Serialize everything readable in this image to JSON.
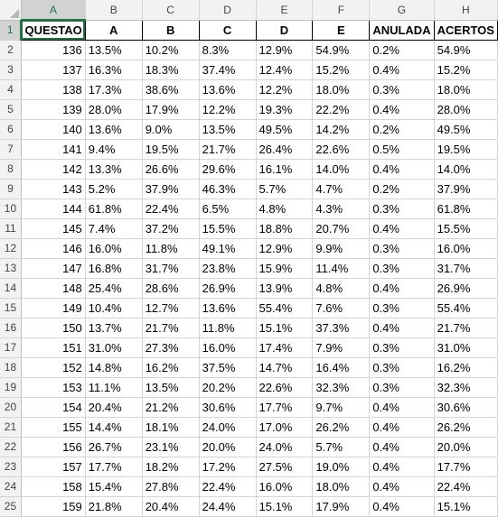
{
  "sheet": {
    "column_headers": [
      "A",
      "B",
      "C",
      "D",
      "E",
      "F",
      "G",
      "H"
    ],
    "selected_column": "A",
    "selected_row": 1,
    "header_row": [
      "QUESTAO",
      "A",
      "B",
      "C",
      "D",
      "E",
      "ANULADA",
      "ACERTOS"
    ],
    "rows": [
      {
        "n": "2",
        "cells": [
          "136",
          "13.5%",
          "10.2%",
          "8.3%",
          "12.9%",
          "54.9%",
          "0.2%",
          "54.9%"
        ]
      },
      {
        "n": "3",
        "cells": [
          "137",
          "16.3%",
          "18.3%",
          "37.4%",
          "12.4%",
          "15.2%",
          "0.4%",
          "15.2%"
        ]
      },
      {
        "n": "4",
        "cells": [
          "138",
          "17.3%",
          "38.6%",
          "13.6%",
          "12.2%",
          "18.0%",
          "0.3%",
          "18.0%"
        ]
      },
      {
        "n": "5",
        "cells": [
          "139",
          "28.0%",
          "17.9%",
          "12.2%",
          "19.3%",
          "22.2%",
          "0.4%",
          "28.0%"
        ]
      },
      {
        "n": "6",
        "cells": [
          "140",
          "13.6%",
          "9.0%",
          "13.5%",
          "49.5%",
          "14.2%",
          "0.2%",
          "49.5%"
        ]
      },
      {
        "n": "7",
        "cells": [
          "141",
          "9.4%",
          "19.5%",
          "21.7%",
          "26.4%",
          "22.6%",
          "0.5%",
          "19.5%"
        ]
      },
      {
        "n": "8",
        "cells": [
          "142",
          "13.3%",
          "26.6%",
          "29.6%",
          "16.1%",
          "14.0%",
          "0.4%",
          "14.0%"
        ]
      },
      {
        "n": "9",
        "cells": [
          "143",
          "5.2%",
          "37.9%",
          "46.3%",
          "5.7%",
          "4.7%",
          "0.2%",
          "37.9%"
        ]
      },
      {
        "n": "10",
        "cells": [
          "144",
          "61.8%",
          "22.4%",
          "6.5%",
          "4.8%",
          "4.3%",
          "0.3%",
          "61.8%"
        ]
      },
      {
        "n": "11",
        "cells": [
          "145",
          "7.4%",
          "37.2%",
          "15.5%",
          "18.8%",
          "20.7%",
          "0.4%",
          "15.5%"
        ]
      },
      {
        "n": "12",
        "cells": [
          "146",
          "16.0%",
          "11.8%",
          "49.1%",
          "12.9%",
          "9.9%",
          "0.3%",
          "16.0%"
        ]
      },
      {
        "n": "13",
        "cells": [
          "147",
          "16.8%",
          "31.7%",
          "23.8%",
          "15.9%",
          "11.4%",
          "0.3%",
          "31.7%"
        ]
      },
      {
        "n": "14",
        "cells": [
          "148",
          "25.4%",
          "28.6%",
          "26.9%",
          "13.9%",
          "4.8%",
          "0.4%",
          "26.9%"
        ]
      },
      {
        "n": "15",
        "cells": [
          "149",
          "10.4%",
          "12.7%",
          "13.6%",
          "55.4%",
          "7.6%",
          "0.3%",
          "55.4%"
        ]
      },
      {
        "n": "16",
        "cells": [
          "150",
          "13.7%",
          "21.7%",
          "11.8%",
          "15.1%",
          "37.3%",
          "0.4%",
          "21.7%"
        ]
      },
      {
        "n": "17",
        "cells": [
          "151",
          "31.0%",
          "27.3%",
          "16.0%",
          "17.4%",
          "7.9%",
          "0.3%",
          "31.0%"
        ]
      },
      {
        "n": "18",
        "cells": [
          "152",
          "14.8%",
          "16.2%",
          "37.5%",
          "14.7%",
          "16.4%",
          "0.3%",
          "16.2%"
        ]
      },
      {
        "n": "19",
        "cells": [
          "153",
          "11.1%",
          "13.5%",
          "20.2%",
          "22.6%",
          "32.3%",
          "0.3%",
          "32.3%"
        ]
      },
      {
        "n": "20",
        "cells": [
          "154",
          "20.4%",
          "21.2%",
          "30.6%",
          "17.7%",
          "9.7%",
          "0.4%",
          "30.6%"
        ]
      },
      {
        "n": "21",
        "cells": [
          "155",
          "14.4%",
          "18.1%",
          "24.0%",
          "17.0%",
          "26.2%",
          "0.4%",
          "26.2%"
        ]
      },
      {
        "n": "22",
        "cells": [
          "156",
          "26.7%",
          "23.1%",
          "20.0%",
          "24.0%",
          "5.7%",
          "0.4%",
          "20.0%"
        ]
      },
      {
        "n": "23",
        "cells": [
          "157",
          "17.7%",
          "18.2%",
          "17.2%",
          "27.5%",
          "19.0%",
          "0.4%",
          "17.7%"
        ]
      },
      {
        "n": "24",
        "cells": [
          "158",
          "15.4%",
          "27.8%",
          "22.4%",
          "16.0%",
          "18.0%",
          "0.4%",
          "22.4%"
        ]
      },
      {
        "n": "25",
        "cells": [
          "159",
          "21.8%",
          "20.4%",
          "24.4%",
          "15.1%",
          "17.9%",
          "0.4%",
          "15.1%"
        ]
      }
    ]
  }
}
